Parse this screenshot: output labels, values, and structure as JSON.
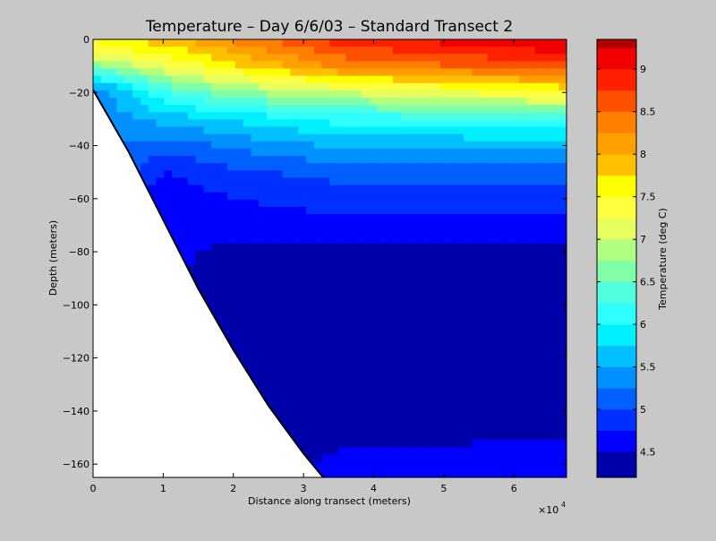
{
  "chart_data": {
    "type": "contour",
    "title": "Temperature – Day 6/6/03 – Standard Transect 2",
    "xlabel": "Distance along transect (meters)",
    "ylabel": "Depth (meters)",
    "x_multiplier_label": "×10",
    "x_multiplier_exponent": "4",
    "xlim": [
      0,
      67500
    ],
    "ylim": [
      -165,
      0
    ],
    "x_ticks": [
      0,
      1,
      2,
      3,
      4,
      5,
      6
    ],
    "y_ticks": [
      0,
      -20,
      -40,
      -60,
      -80,
      -100,
      -120,
      -140,
      -160
    ],
    "colorbar": {
      "label": "Temperature (deg C)",
      "range": [
        4.2,
        9.35
      ],
      "ticks": [
        4.5,
        5,
        5.5,
        6,
        6.5,
        7,
        7.5,
        8,
        8.5,
        9
      ],
      "levels": [
        {
          "min": 4.2,
          "max": 4.5,
          "color": "#0000a8"
        },
        {
          "min": 4.5,
          "max": 4.75,
          "color": "#0000ff"
        },
        {
          "min": 4.75,
          "max": 5.0,
          "color": "#0030ff"
        },
        {
          "min": 5.0,
          "max": 5.25,
          "color": "#0060ff"
        },
        {
          "min": 5.25,
          "max": 5.5,
          "color": "#0090ff"
        },
        {
          "min": 5.5,
          "max": 5.75,
          "color": "#00c0ff"
        },
        {
          "min": 5.75,
          "max": 6.0,
          "color": "#00f0ff"
        },
        {
          "min": 6.0,
          "max": 6.25,
          "color": "#30ffff"
        },
        {
          "min": 6.25,
          "max": 6.5,
          "color": "#50ffdd"
        },
        {
          "min": 6.5,
          "max": 6.75,
          "color": "#80ffa8"
        },
        {
          "min": 6.75,
          "max": 7.0,
          "color": "#b0ff80"
        },
        {
          "min": 7.0,
          "max": 7.25,
          "color": "#e8ff60"
        },
        {
          "min": 7.25,
          "max": 7.5,
          "color": "#ffff40"
        },
        {
          "min": 7.5,
          "max": 7.75,
          "color": "#ffff00"
        },
        {
          "min": 7.75,
          "max": 8.0,
          "color": "#ffc000"
        },
        {
          "min": 8.0,
          "max": 8.25,
          "color": "#ffa000"
        },
        {
          "min": 8.25,
          "max": 8.5,
          "color": "#ff8000"
        },
        {
          "min": 8.5,
          "max": 8.75,
          "color": "#ff5000"
        },
        {
          "min": 8.75,
          "max": 9.0,
          "color": "#ff2000"
        },
        {
          "min": 9.0,
          "max": 9.25,
          "color": "#f00000"
        },
        {
          "min": 9.25,
          "max": 9.35,
          "color": "#b00000"
        }
      ]
    },
    "bathymetry": {
      "x": [
        0,
        5000,
        10000,
        15000,
        20000,
        25000,
        30000,
        35000,
        40000,
        45000,
        50000,
        55000,
        60000,
        64000,
        67500
      ],
      "y": [
        -19,
        -42,
        -68,
        -94,
        -117,
        -138,
        -156,
        -172,
        -185,
        -192,
        -192,
        -186,
        -181,
        -180,
        -184
      ]
    },
    "surface_temperature_x": [
      0,
      10000,
      20000,
      30000,
      40000,
      50000,
      60000,
      67500
    ],
    "temperature_profiles": [
      {
        "x": 0,
        "depth": [
          0,
          -5,
          -10,
          -15,
          -19
        ],
        "temperature": [
          7.55,
          7.3,
          6.6,
          5.9,
          5.3
        ]
      },
      {
        "x": 10000,
        "depth": [
          0,
          -10,
          -20,
          -30,
          -40,
          -50,
          -60
        ],
        "temperature": [
          7.9,
          7.2,
          6.2,
          5.6,
          5.1,
          4.75,
          4.55
        ]
      },
      {
        "x": 20000,
        "depth": [
          0,
          -10,
          -20,
          -30,
          -40,
          -50,
          -60,
          -80,
          -100
        ],
        "temperature": [
          8.3,
          7.7,
          6.7,
          5.8,
          5.3,
          4.95,
          4.75,
          4.45,
          4.35
        ]
      },
      {
        "x": 35000,
        "depth": [
          0,
          -10,
          -20,
          -30,
          -40,
          -50,
          -60,
          -70,
          -80,
          -140,
          -160
        ],
        "temperature": [
          8.9,
          8.3,
          7.0,
          6.1,
          5.55,
          5.1,
          4.85,
          4.7,
          4.45,
          4.35,
          4.55
        ]
      },
      {
        "x": 67500,
        "depth": [
          0,
          -10,
          -20,
          -30,
          -40,
          -50,
          -60,
          -70,
          -80,
          -140,
          -158
        ],
        "temperature": [
          9.3,
          8.7,
          7.5,
          6.2,
          5.6,
          5.1,
          4.85,
          4.7,
          4.45,
          4.35,
          4.6
        ]
      }
    ]
  }
}
